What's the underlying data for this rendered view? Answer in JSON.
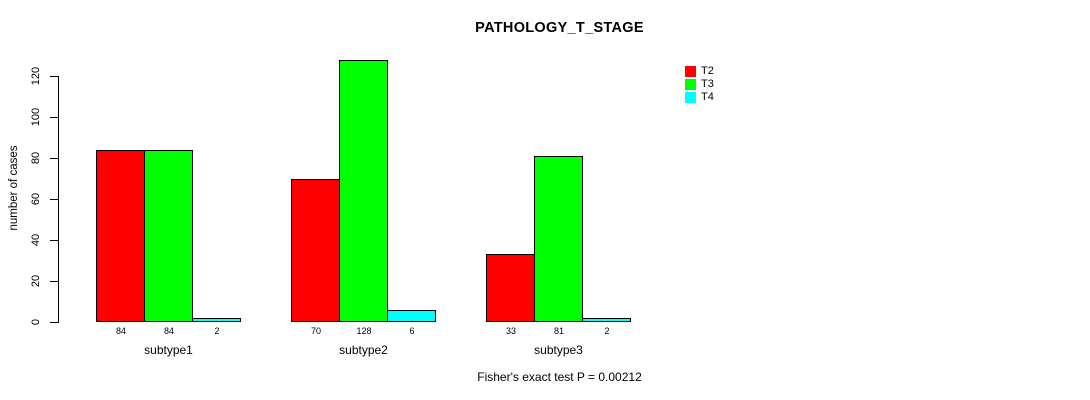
{
  "chart_data": {
    "type": "bar",
    "title": "PATHOLOGY_T_STAGE",
    "xlabel": "",
    "ylabel": "number of cases",
    "categories": [
      "subtype1",
      "subtype2",
      "subtype3"
    ],
    "series": [
      {
        "name": "T2",
        "color": "#ff0000",
        "values": [
          84,
          70,
          33
        ]
      },
      {
        "name": "T3",
        "color": "#00ff00",
        "values": [
          84,
          128,
          81
        ]
      },
      {
        "name": "T4",
        "color": "#00ffff",
        "values": [
          2,
          6,
          2
        ]
      }
    ],
    "yticks": [
      0,
      20,
      40,
      60,
      80,
      100,
      120
    ],
    "ylim": [
      0,
      120
    ],
    "grid": false,
    "bar_value_labels": [
      [
        84,
        84,
        2
      ],
      [
        70,
        128,
        6
      ],
      [
        33,
        81,
        2
      ]
    ],
    "legend": {
      "position": "top-right",
      "entries": [
        "T2",
        "T3",
        "T4"
      ]
    },
    "annotation": "Fisher's exact test P = 0.00212"
  }
}
